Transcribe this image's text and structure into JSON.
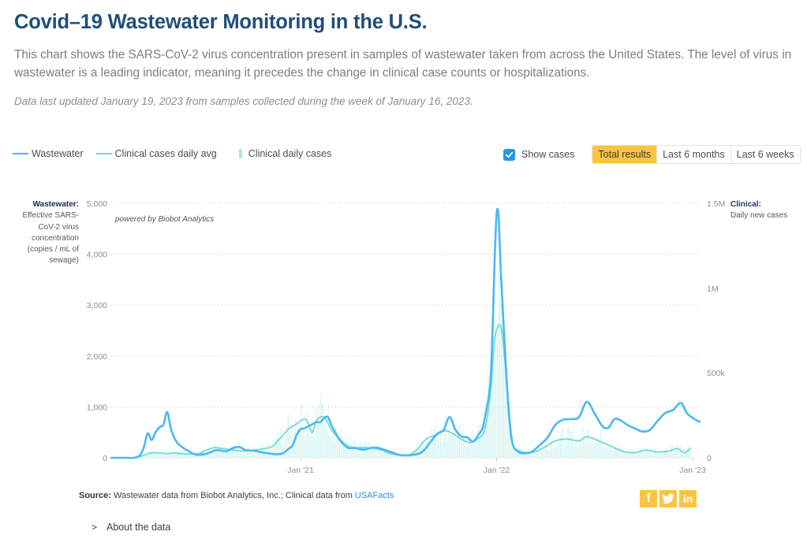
{
  "header": {
    "title": "Covid–19 Wastewater Monitoring in the U.S.",
    "description": "This chart shows the SARS-CoV-2 virus concentration present in samples of wastewater taken from across the United States. The level of virus in wastewater is a leading indicator, meaning it precedes the change in clinical case counts or hospitalizations.",
    "updated": "Data last updated January 19, 2023 from samples collected during the week of January 16, 2023."
  },
  "legend": {
    "wastewater": "Wastewater",
    "clinical_avg": "Clinical cases daily avg",
    "clinical_daily": "Clinical daily cases"
  },
  "controls": {
    "show_cases_label": "Show cases",
    "show_cases_checked": true,
    "ranges": [
      {
        "label": "Total results",
        "active": true
      },
      {
        "label": "Last 6 months",
        "active": false
      },
      {
        "label": "Last 6 weeks",
        "active": false
      }
    ]
  },
  "colors": {
    "wastewater": "#4bb8f5",
    "clinical_avg": "#6fdcd0",
    "clinical_bars": "#c9f1ee",
    "accent": "#fcc43e",
    "title": "#1e4e7c",
    "link": "#2a8de0"
  },
  "axis_titles": {
    "left_bold": "Wastewater:",
    "left_rest": "Effective SARS-CoV-2 virus concentration (copies / mL of sewage)",
    "right_bold": "Clinical:",
    "right_rest": "Daily new cases"
  },
  "powered_by": "powered by Biobot Analytics",
  "footer": {
    "source_bold": "Source:",
    "source_text": " Wastewater data from Biobot Analytics, Inc.; Clinical data from ",
    "source_link": "USAFacts",
    "share": [
      "f",
      "t",
      "in"
    ],
    "share_names": [
      "facebook",
      "twitter",
      "linkedin"
    ],
    "about": "About the data"
  },
  "chart_data": {
    "type": "line",
    "title": "Covid–19 Wastewater Monitoring in the U.S.",
    "x_range": [
      "2020-03",
      "2023-01"
    ],
    "x_ticks": [
      {
        "label": "Jan '21",
        "t": 2021.0
      },
      {
        "label": "Jan '22",
        "t": 2022.0
      },
      {
        "label": "Jan '23",
        "t": 2023.0
      }
    ],
    "left_axis": {
      "label": "Wastewater: Effective SARS-CoV-2 virus concentration (copies / mL of sewage)",
      "range": [
        0,
        5000
      ],
      "ticks": [
        "0",
        "1,000",
        "2,000",
        "3,000",
        "4,000",
        "5,000"
      ],
      "tick_values": [
        0,
        1000,
        2000,
        3000,
        4000,
        5000
      ]
    },
    "right_axis": {
      "label": "Clinical: Daily new cases",
      "range": [
        0,
        1500000
      ],
      "ticks": [
        "0",
        "500k",
        "1M",
        "1.5M"
      ],
      "tick_values": [
        0,
        500000,
        1000000,
        1500000
      ]
    },
    "grid": true,
    "legend_position": "top-left",
    "series": [
      {
        "name": "Wastewater",
        "axis": "left",
        "points": [
          [
            2020.03,
            0
          ],
          [
            2020.1,
            0
          ],
          [
            2020.15,
            0
          ],
          [
            2020.18,
            50
          ],
          [
            2020.2,
            200
          ],
          [
            2020.22,
            480
          ],
          [
            2020.24,
            350
          ],
          [
            2020.26,
            500
          ],
          [
            2020.28,
            600
          ],
          [
            2020.3,
            650
          ],
          [
            2020.32,
            900
          ],
          [
            2020.34,
            550
          ],
          [
            2020.37,
            300
          ],
          [
            2020.42,
            150
          ],
          [
            2020.47,
            60
          ],
          [
            2020.52,
            80
          ],
          [
            2020.57,
            150
          ],
          [
            2020.62,
            130
          ],
          [
            2020.66,
            200
          ],
          [
            2020.69,
            210
          ],
          [
            2020.72,
            150
          ],
          [
            2020.76,
            140
          ],
          [
            2020.8,
            110
          ],
          [
            2020.85,
            80
          ],
          [
            2020.88,
            70
          ],
          [
            2020.91,
            90
          ],
          [
            2020.94,
            180
          ],
          [
            2020.96,
            250
          ],
          [
            2020.98,
            450
          ],
          [
            2021.0,
            560
          ],
          [
            2021.02,
            580
          ],
          [
            2021.05,
            640
          ],
          [
            2021.08,
            700
          ],
          [
            2021.1,
            700
          ],
          [
            2021.12,
            780
          ],
          [
            2021.14,
            800
          ],
          [
            2021.16,
            620
          ],
          [
            2021.2,
            350
          ],
          [
            2021.24,
            200
          ],
          [
            2021.28,
            190
          ],
          [
            2021.32,
            160
          ],
          [
            2021.37,
            200
          ],
          [
            2021.4,
            190
          ],
          [
            2021.45,
            130
          ],
          [
            2021.5,
            60
          ],
          [
            2021.55,
            50
          ],
          [
            2021.6,
            80
          ],
          [
            2021.63,
            150
          ],
          [
            2021.66,
            300
          ],
          [
            2021.7,
            480
          ],
          [
            2021.73,
            550
          ],
          [
            2021.76,
            800
          ],
          [
            2021.79,
            550
          ],
          [
            2021.82,
            420
          ],
          [
            2021.85,
            400
          ],
          [
            2021.88,
            320
          ],
          [
            2021.91,
            470
          ],
          [
            2021.93,
            600
          ],
          [
            2021.95,
            1000
          ],
          [
            2021.96,
            1200
          ],
          [
            2021.97,
            1600
          ],
          [
            2021.98,
            2600
          ],
          [
            2021.99,
            3900
          ],
          [
            2022.0,
            4800
          ],
          [
            2022.01,
            4750
          ],
          [
            2022.02,
            3800
          ],
          [
            2022.04,
            2300
          ],
          [
            2022.06,
            1000
          ],
          [
            2022.08,
            300
          ],
          [
            2022.11,
            120
          ],
          [
            2022.14,
            90
          ],
          [
            2022.18,
            120
          ],
          [
            2022.22,
            250
          ],
          [
            2022.26,
            400
          ],
          [
            2022.3,
            650
          ],
          [
            2022.34,
            750
          ],
          [
            2022.38,
            760
          ],
          [
            2022.42,
            800
          ],
          [
            2022.46,
            1100
          ],
          [
            2022.5,
            870
          ],
          [
            2022.54,
            620
          ],
          [
            2022.57,
            590
          ],
          [
            2022.6,
            760
          ],
          [
            2022.63,
            740
          ],
          [
            2022.67,
            640
          ],
          [
            2022.71,
            570
          ],
          [
            2022.74,
            520
          ],
          [
            2022.78,
            540
          ],
          [
            2022.82,
            720
          ],
          [
            2022.86,
            880
          ],
          [
            2022.9,
            940
          ],
          [
            2022.94,
            1080
          ],
          [
            2022.97,
            880
          ],
          [
            2023.01,
            760
          ],
          [
            2023.04,
            700
          ]
        ]
      },
      {
        "name": "Clinical cases daily avg",
        "axis": "right",
        "points": [
          [
            2020.03,
            0
          ],
          [
            2020.15,
            0
          ],
          [
            2020.2,
            15000
          ],
          [
            2020.24,
            30000
          ],
          [
            2020.28,
            28000
          ],
          [
            2020.32,
            25000
          ],
          [
            2020.36,
            28000
          ],
          [
            2020.42,
            22000
          ],
          [
            2020.48,
            25000
          ],
          [
            2020.52,
            45000
          ],
          [
            2020.56,
            60000
          ],
          [
            2020.6,
            55000
          ],
          [
            2020.66,
            45000
          ],
          [
            2020.7,
            40000
          ],
          [
            2020.76,
            45000
          ],
          [
            2020.82,
            55000
          ],
          [
            2020.86,
            70000
          ],
          [
            2020.9,
            120000
          ],
          [
            2020.94,
            170000
          ],
          [
            2020.98,
            200000
          ],
          [
            2021.02,
            230000
          ],
          [
            2021.04,
            200000
          ],
          [
            2021.06,
            150000
          ],
          [
            2021.08,
            220000
          ],
          [
            2021.12,
            240000
          ],
          [
            2021.16,
            160000
          ],
          [
            2021.2,
            110000
          ],
          [
            2021.24,
            70000
          ],
          [
            2021.28,
            60000
          ],
          [
            2021.34,
            60000
          ],
          [
            2021.4,
            50000
          ],
          [
            2021.46,
            25000
          ],
          [
            2021.52,
            15000
          ],
          [
            2021.56,
            20000
          ],
          [
            2021.6,
            55000
          ],
          [
            2021.64,
            110000
          ],
          [
            2021.7,
            140000
          ],
          [
            2021.74,
            160000
          ],
          [
            2021.78,
            140000
          ],
          [
            2021.82,
            110000
          ],
          [
            2021.86,
            90000
          ],
          [
            2021.9,
            110000
          ],
          [
            2021.94,
            170000
          ],
          [
            2021.97,
            400000
          ],
          [
            2021.99,
            700000
          ],
          [
            2022.02,
            780000
          ],
          [
            2022.04,
            600000
          ],
          [
            2022.06,
            280000
          ],
          [
            2022.08,
            80000
          ],
          [
            2022.12,
            40000
          ],
          [
            2022.18,
            30000
          ],
          [
            2022.24,
            60000
          ],
          [
            2022.3,
            100000
          ],
          [
            2022.36,
            110000
          ],
          [
            2022.42,
            100000
          ],
          [
            2022.46,
            125000
          ],
          [
            2022.52,
            100000
          ],
          [
            2022.58,
            70000
          ],
          [
            2022.64,
            40000
          ],
          [
            2022.7,
            30000
          ],
          [
            2022.76,
            45000
          ],
          [
            2022.82,
            35000
          ],
          [
            2022.88,
            40000
          ],
          [
            2022.92,
            55000
          ],
          [
            2022.96,
            30000
          ],
          [
            2022.99,
            60000
          ]
        ]
      }
    ]
  }
}
